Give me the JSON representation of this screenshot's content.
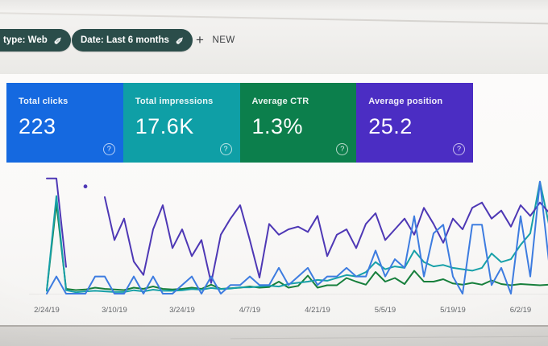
{
  "toolbar": {
    "chips": [
      {
        "label": "type: Web"
      },
      {
        "label": "Date: Last 6 months"
      }
    ],
    "plus": "+",
    "new_label": "NEW"
  },
  "icons": {
    "pencil": "✎",
    "help": "?"
  },
  "cards": [
    {
      "label": "Total clicks",
      "value": "223",
      "color": "#1569e0"
    },
    {
      "label": "Total impressions",
      "value": "17.6K",
      "color": "#0f9fa6"
    },
    {
      "label": "Average CTR",
      "value": "1.3%",
      "color": "#0c7f4c"
    },
    {
      "label": "Average position",
      "value": "25.2",
      "color": "#4b2dc3"
    }
  ],
  "chart_data": {
    "type": "line",
    "x_labels": [
      "2/24/19",
      "3/10/19",
      "3/24/19",
      "4/7/19",
      "4/21/19",
      "5/5/19",
      "5/19/19",
      "6/2/19"
    ],
    "legend_position": "none",
    "grid": false,
    "series": [
      {
        "name": "Average CTR (%)",
        "color": "#177f3c",
        "axis_min": 0,
        "axis_max": 20,
        "inverted": false,
        "values": [
          0.5,
          15,
          0.8,
          0.6,
          0.7,
          1,
          0.8,
          0.7,
          0.6,
          1,
          0.8,
          1.2,
          0.8,
          0.7,
          0.8,
          1,
          0.8,
          1.5,
          0.8,
          0.9,
          1,
          1.2,
          1,
          1.1,
          2,
          1,
          1.3,
          3,
          1,
          1.4,
          1.4,
          2.6,
          2,
          1.5,
          3.6,
          2,
          2.6,
          1.6,
          3.8,
          2,
          2,
          2.4,
          1.7,
          1.5,
          1.8,
          1.5,
          2.2,
          1.6,
          1.4,
          1.6,
          1.5,
          1.4,
          1.5,
          1.5
        ]
      },
      {
        "name": "Total impressions (per day)",
        "color": "#17a0a8",
        "axis_min": 0,
        "axis_max": 420,
        "inverted": false,
        "values": [
          10,
          340,
          12,
          5,
          8,
          10,
          8,
          6,
          6,
          12,
          8,
          14,
          10,
          10,
          12,
          16,
          14,
          20,
          16,
          18,
          22,
          22,
          25,
          28,
          25,
          34,
          38,
          42,
          48,
          45,
          55,
          65,
          60,
          75,
          110,
          85,
          95,
          90,
          150,
          110,
          95,
          100,
          90,
          85,
          80,
          90,
          140,
          110,
          120,
          170,
          210,
          390,
          230,
          300
        ]
      },
      {
        "name": "Average position",
        "color": "#4e38b5",
        "axis_min": 5,
        "axis_max": 50,
        "inverted": true,
        "values": [
          7,
          7,
          40,
          null,
          10,
          null,
          14,
          30,
          22,
          38,
          43,
          26,
          17,
          33,
          26,
          36,
          30,
          46,
          28,
          22,
          17,
          30,
          44,
          24,
          28,
          26,
          25,
          27,
          21,
          36,
          28,
          26,
          33,
          24,
          20,
          30,
          26,
          22,
          28,
          18,
          24,
          31,
          22,
          26,
          18,
          16,
          22,
          19,
          25,
          17,
          21,
          16,
          20,
          24
        ]
      },
      {
        "name": "Total clicks (per day)",
        "color": "#3d7ce0",
        "axis_min": 0,
        "axis_max": 14,
        "inverted": false,
        "values": [
          0,
          2,
          0,
          0,
          0,
          2,
          2,
          0,
          0,
          2,
          0,
          2,
          0,
          0,
          1,
          2,
          0,
          2,
          0,
          1,
          1,
          2,
          1,
          1,
          3,
          1,
          2,
          3,
          1,
          2,
          2,
          3,
          2,
          2,
          5,
          2,
          4,
          3,
          9,
          2,
          7,
          8,
          2,
          0,
          8,
          8,
          1,
          3,
          0,
          9,
          2,
          13,
          3,
          8
        ]
      }
    ]
  }
}
